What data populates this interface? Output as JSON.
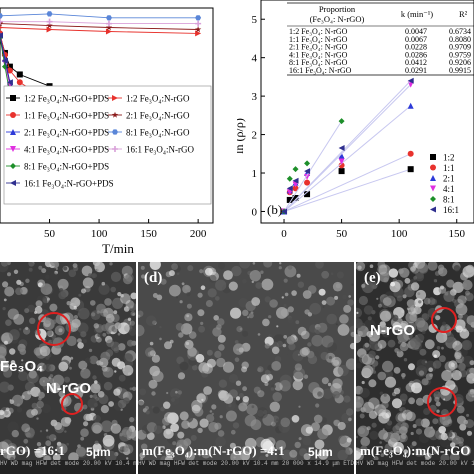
{
  "chart_data": [
    {
      "panel": "a",
      "type": "line",
      "xlabel": "T/min",
      "xticks": [
        50,
        100,
        150,
        200
      ],
      "xlim": [
        0,
        215
      ],
      "ylim": [
        0,
        1.1
      ],
      "legend": [
        {
          "label": "1:2  Fe₃O₄:N-rGO+PDS",
          "color": "#000000",
          "marker": "square"
        },
        {
          "label": "1:1  Fe₃O₄:N-rGO+PDS",
          "color": "#e8322d",
          "marker": "circle"
        },
        {
          "label": "2:1  Fe₃O₄:N-rGO+PDS",
          "color": "#2d3ad8",
          "marker": "triangle"
        },
        {
          "label": "4:1  Fe₃O₄:N-rGO+PDS",
          "color": "#e02fe0",
          "marker": "triangle-down"
        },
        {
          "label": "8:1  Fe₃O₄:N-rGO+PDS",
          "color": "#1d8f2a",
          "marker": "diamond"
        },
        {
          "label": "16:1 Fe₃O₄:N-rGO+PDS",
          "color": "#2f2f8f",
          "marker": "triangle-left"
        },
        {
          "label": "1:2  Fe₃O₄:N-rGO",
          "color": "#e8322d",
          "marker": "triangle-right"
        },
        {
          "label": "2:1  Fe₃O₄:N-rGO",
          "color": "#8b1a1a",
          "marker": "star"
        },
        {
          "label": "8:1  Fe₃O₄:N-rGO",
          "color": "#5a86d8",
          "marker": "hexagon"
        },
        {
          "label": "16:1 Fe₃O₄:N-rGO",
          "color": "#d9a0d9",
          "marker": "plus"
        }
      ],
      "series": [
        {
          "name": "1:2  Fe₃O₄:N-rGO+PDS",
          "x": [
            0,
            5,
            10,
            20,
            50,
            110,
            200
          ],
          "y": [
            0.96,
            0.87,
            0.8,
            0.76,
            0.7,
            0.68,
            0.67
          ]
        },
        {
          "name": "1:1  Fe₃O₄:N-rGO+PDS",
          "x": [
            0,
            5,
            10,
            20,
            50,
            110,
            200
          ],
          "y": [
            0.97,
            0.86,
            0.78,
            0.72,
            0.62,
            0.52,
            0.49
          ]
        },
        {
          "name": "2:1  Fe₃O₄:N-rGO+PDS",
          "x": [
            0,
            5,
            10,
            20,
            50,
            110,
            200
          ],
          "y": [
            0.96,
            0.84,
            0.72,
            0.62,
            0.4,
            0.26,
            0.2
          ]
        },
        {
          "name": "4:1  Fe₃O₄:N-rGO+PDS",
          "x": [
            0,
            5,
            10,
            20,
            50,
            110,
            200
          ],
          "y": [
            0.95,
            0.82,
            0.7,
            0.6,
            0.42,
            0.3,
            0.25
          ]
        },
        {
          "name": "8:1  Fe₃O₄:N-rGO+PDS",
          "x": [
            0,
            5,
            10,
            20,
            50,
            110,
            200
          ],
          "y": [
            0.95,
            0.8,
            0.66,
            0.55,
            0.34,
            0.2,
            0.16
          ]
        },
        {
          "name": "16:1 Fe₃O₄:N-rGO+PDS",
          "x": [
            0,
            5,
            10,
            20,
            50,
            110,
            200
          ],
          "y": [
            0.96,
            0.83,
            0.72,
            0.62,
            0.42,
            0.25,
            0.2
          ]
        },
        {
          "name": "1:2  Fe₃O₄:N-rGO",
          "x": [
            0,
            50,
            110,
            200
          ],
          "y": [
            1.0,
            0.99,
            0.98,
            0.97
          ]
        },
        {
          "name": "2:1  Fe₃O₄:N-rGO",
          "x": [
            0,
            50,
            110,
            200
          ],
          "y": [
            1.02,
            1.01,
            1.0,
            0.99
          ]
        },
        {
          "name": "8:1  Fe₃O₄:N-rGO",
          "x": [
            0,
            50,
            110,
            200
          ],
          "y": [
            1.06,
            1.07,
            1.05,
            1.05
          ]
        },
        {
          "name": "16:1 Fe₃O₄:N-rGO",
          "x": [
            0,
            50,
            110,
            200
          ],
          "y": [
            1.03,
            1.03,
            1.02,
            1.02
          ]
        }
      ]
    },
    {
      "panel": "b",
      "type": "scatter",
      "panel_label": "(b)",
      "ylabel": "ln (ρ/ρ)",
      "xticks": [
        0,
        50,
        100,
        150
      ],
      "yticks": [
        0,
        1,
        2,
        3,
        4,
        5
      ],
      "xlim": [
        -20,
        165
      ],
      "ylim": [
        -0.3,
        5.5
      ],
      "table": {
        "headers": [
          "Proportion\n(Fe₃O₄: N-rGO)",
          "k  (min⁻¹)",
          "R²"
        ],
        "rows": [
          [
            "1:2 Fe₃O₄: N-rGO",
            "0.0047",
            "0.6734"
          ],
          [
            "1:1 Fe₃O₄: N-rGO",
            "0.0067",
            "0.8080"
          ],
          [
            "2:1 Fe₃O₄: N-rGO",
            "0.0228",
            "0.9709"
          ],
          [
            "4:1 Fe₃O₄: N-rGO",
            "0.0286",
            "0.9759"
          ],
          [
            "8:1 Fe₃O₄: N-rGO",
            "0.0412",
            "0.9206"
          ],
          [
            "16:1 Fe₃O₄: N-rGO",
            "0.0291",
            "0.9915"
          ]
        ]
      },
      "legend": [
        {
          "label": "1:2",
          "color": "#000000",
          "marker": "square"
        },
        {
          "label": "1:1",
          "color": "#e8322d",
          "marker": "circle"
        },
        {
          "label": "2:1",
          "color": "#2d3ad8",
          "marker": "triangle"
        },
        {
          "label": "4:1",
          "color": "#e02fe0",
          "marker": "triangle-down"
        },
        {
          "label": "8:1",
          "color": "#1d8f2a",
          "marker": "diamond"
        },
        {
          "label": "16:1",
          "color": "#2f2f8f",
          "marker": "triangle-left"
        }
      ],
      "series": [
        {
          "name": "1:2",
          "x": [
            0,
            5,
            10,
            20,
            50,
            110
          ],
          "y": [
            0,
            0.3,
            0.35,
            0.45,
            1.05,
            1.1
          ],
          "fit_k": 0.0047
        },
        {
          "name": "1:1",
          "x": [
            0,
            5,
            10,
            20,
            50,
            110
          ],
          "y": [
            0,
            0.5,
            0.6,
            0.75,
            1.2,
            1.5
          ],
          "fit_k": 0.0067
        },
        {
          "name": "2:1",
          "x": [
            0,
            5,
            10,
            20,
            50,
            110
          ],
          "y": [
            0,
            0.55,
            0.75,
            1.0,
            1.45,
            2.75
          ],
          "fit_k": 0.0228
        },
        {
          "name": "4:1",
          "x": [
            0,
            5,
            10,
            20,
            50,
            110
          ],
          "y": [
            0,
            0.5,
            0.7,
            0.9,
            1.3,
            3.3
          ],
          "fit_k": 0.0286
        },
        {
          "name": "8:1",
          "x": [
            0,
            5,
            10,
            20,
            50
          ],
          "y": [
            0,
            0.85,
            1.1,
            1.25,
            2.35
          ],
          "fit_k": 0.0412
        },
        {
          "name": "16:1",
          "x": [
            0,
            5,
            10,
            20,
            50,
            110
          ],
          "y": [
            0,
            0.6,
            0.8,
            1.05,
            1.65,
            3.4
          ],
          "fit_k": 0.0291
        }
      ]
    }
  ],
  "sem": [
    {
      "letter": "",
      "labels": [
        "Fe₃O₄",
        "N-rGO"
      ],
      "caption": "rGO) =16:1",
      "scale": "5μm",
      "infobar": "HV   WD  mag   HFW  det  mode     20.00 kV 10.4 mm 20 000 x 14.9 μm ETD SE   Quanta FEG"
    },
    {
      "letter": "(d)",
      "labels": [],
      "caption": "m(Fe₃O₄):m(N-rGO) =4:1",
      "scale": "5μm",
      "infobar": "HV   WD  mag   HFW  det  mode     20.00 kV 10.4 mm 20 000 x 14.9 μm ETD SE   Quanta FEG"
    },
    {
      "letter": "(e)",
      "labels": [
        "N-rGO"
      ],
      "caption": "m(Fe₃O₄):m(N-rGO",
      "scale": "",
      "infobar": "HV   WD  mag   HFW  det  mode     20.00 kV 10.5 mm 20 000 x 14.9 μm ETD SE"
    }
  ],
  "colors": {
    "fit_line_light": "#c8c8f0",
    "sem_circle": "#e02020"
  }
}
